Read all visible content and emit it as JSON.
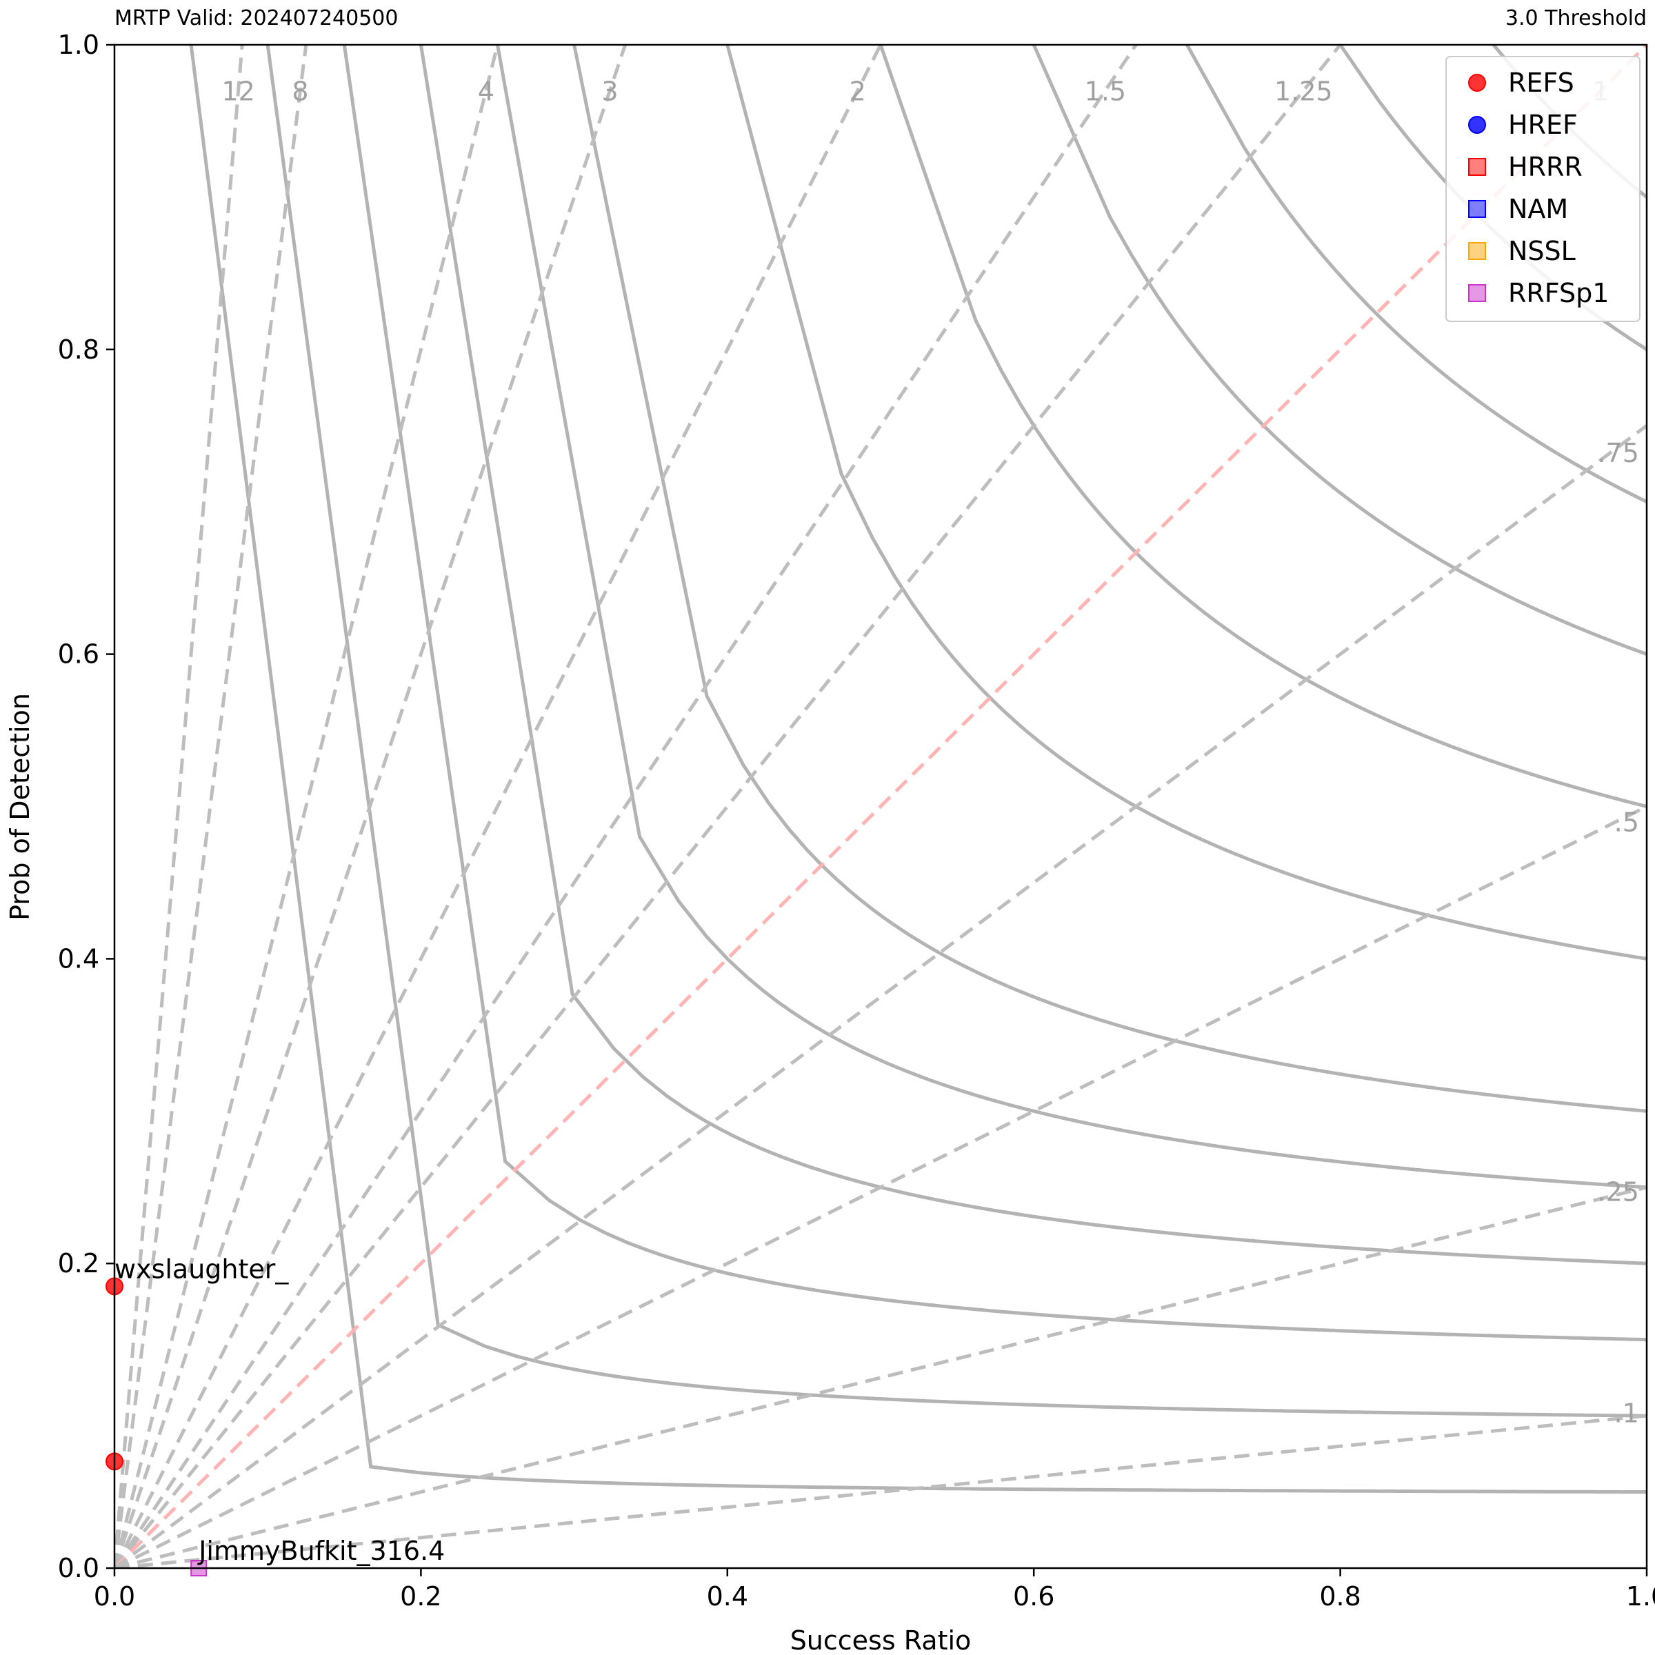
{
  "header": {
    "left_title": "MRTP Valid: 202407240500",
    "right_title": "3.0 Threshold"
  },
  "chart_data": {
    "type": "scatter",
    "title": "",
    "xlabel": "Success Ratio",
    "ylabel": "Prob of Detection",
    "xlim": [
      0.0,
      1.0
    ],
    "ylim": [
      0.0,
      1.0
    ],
    "x_ticks": [
      "0.0",
      "0.2",
      "0.4",
      "0.6",
      "0.8",
      "1.0"
    ],
    "y_ticks": [
      "0.0",
      "0.2",
      "0.4",
      "0.6",
      "0.8",
      "1.0"
    ],
    "grid": false,
    "legend_placement": "top-right",
    "bias_lines": [
      {
        "label": "12",
        "value": 12
      },
      {
        "label": "8",
        "value": 8
      },
      {
        "label": "4",
        "value": 4
      },
      {
        "label": "3",
        "value": 3
      },
      {
        "label": "2",
        "value": 2
      },
      {
        "label": "1.5",
        "value": 1.5
      },
      {
        "label": "1.25",
        "value": 1.25
      },
      {
        "label": "1",
        "value": 1
      },
      {
        "label": ".75",
        "value": 0.75
      },
      {
        "label": ".5",
        "value": 0.5
      },
      {
        "label": ".25",
        "value": 0.25
      },
      {
        "label": ".1",
        "value": 0.1
      }
    ],
    "csi_contours": [
      0.05,
      0.1,
      0.15,
      0.2,
      0.25,
      0.3,
      0.4,
      0.5,
      0.6,
      0.7,
      0.8,
      0.9
    ],
    "series": [
      {
        "name": "REFS",
        "marker": "circle",
        "color": "#ff0000",
        "points": [
          {
            "x": 0.0,
            "y": 0.185,
            "label": "wxslaughter_"
          },
          {
            "x": 0.0,
            "y": 0.07,
            "label": ""
          }
        ]
      },
      {
        "name": "HREF",
        "marker": "circle",
        "color": "#0000ff",
        "points": []
      },
      {
        "name": "HRRR",
        "marker": "square",
        "color": "#ff0000",
        "points": []
      },
      {
        "name": "NAM",
        "marker": "square",
        "color": "#0000ff",
        "points": []
      },
      {
        "name": "NSSL",
        "marker": "square",
        "color": "#ffa500",
        "points": []
      },
      {
        "name": "RRFSp1",
        "marker": "square",
        "color": "#cc33cc",
        "points": [
          {
            "x": 0.055,
            "y": 0.0,
            "label": "JimmyBufkit_316.4"
          }
        ]
      }
    ]
  }
}
